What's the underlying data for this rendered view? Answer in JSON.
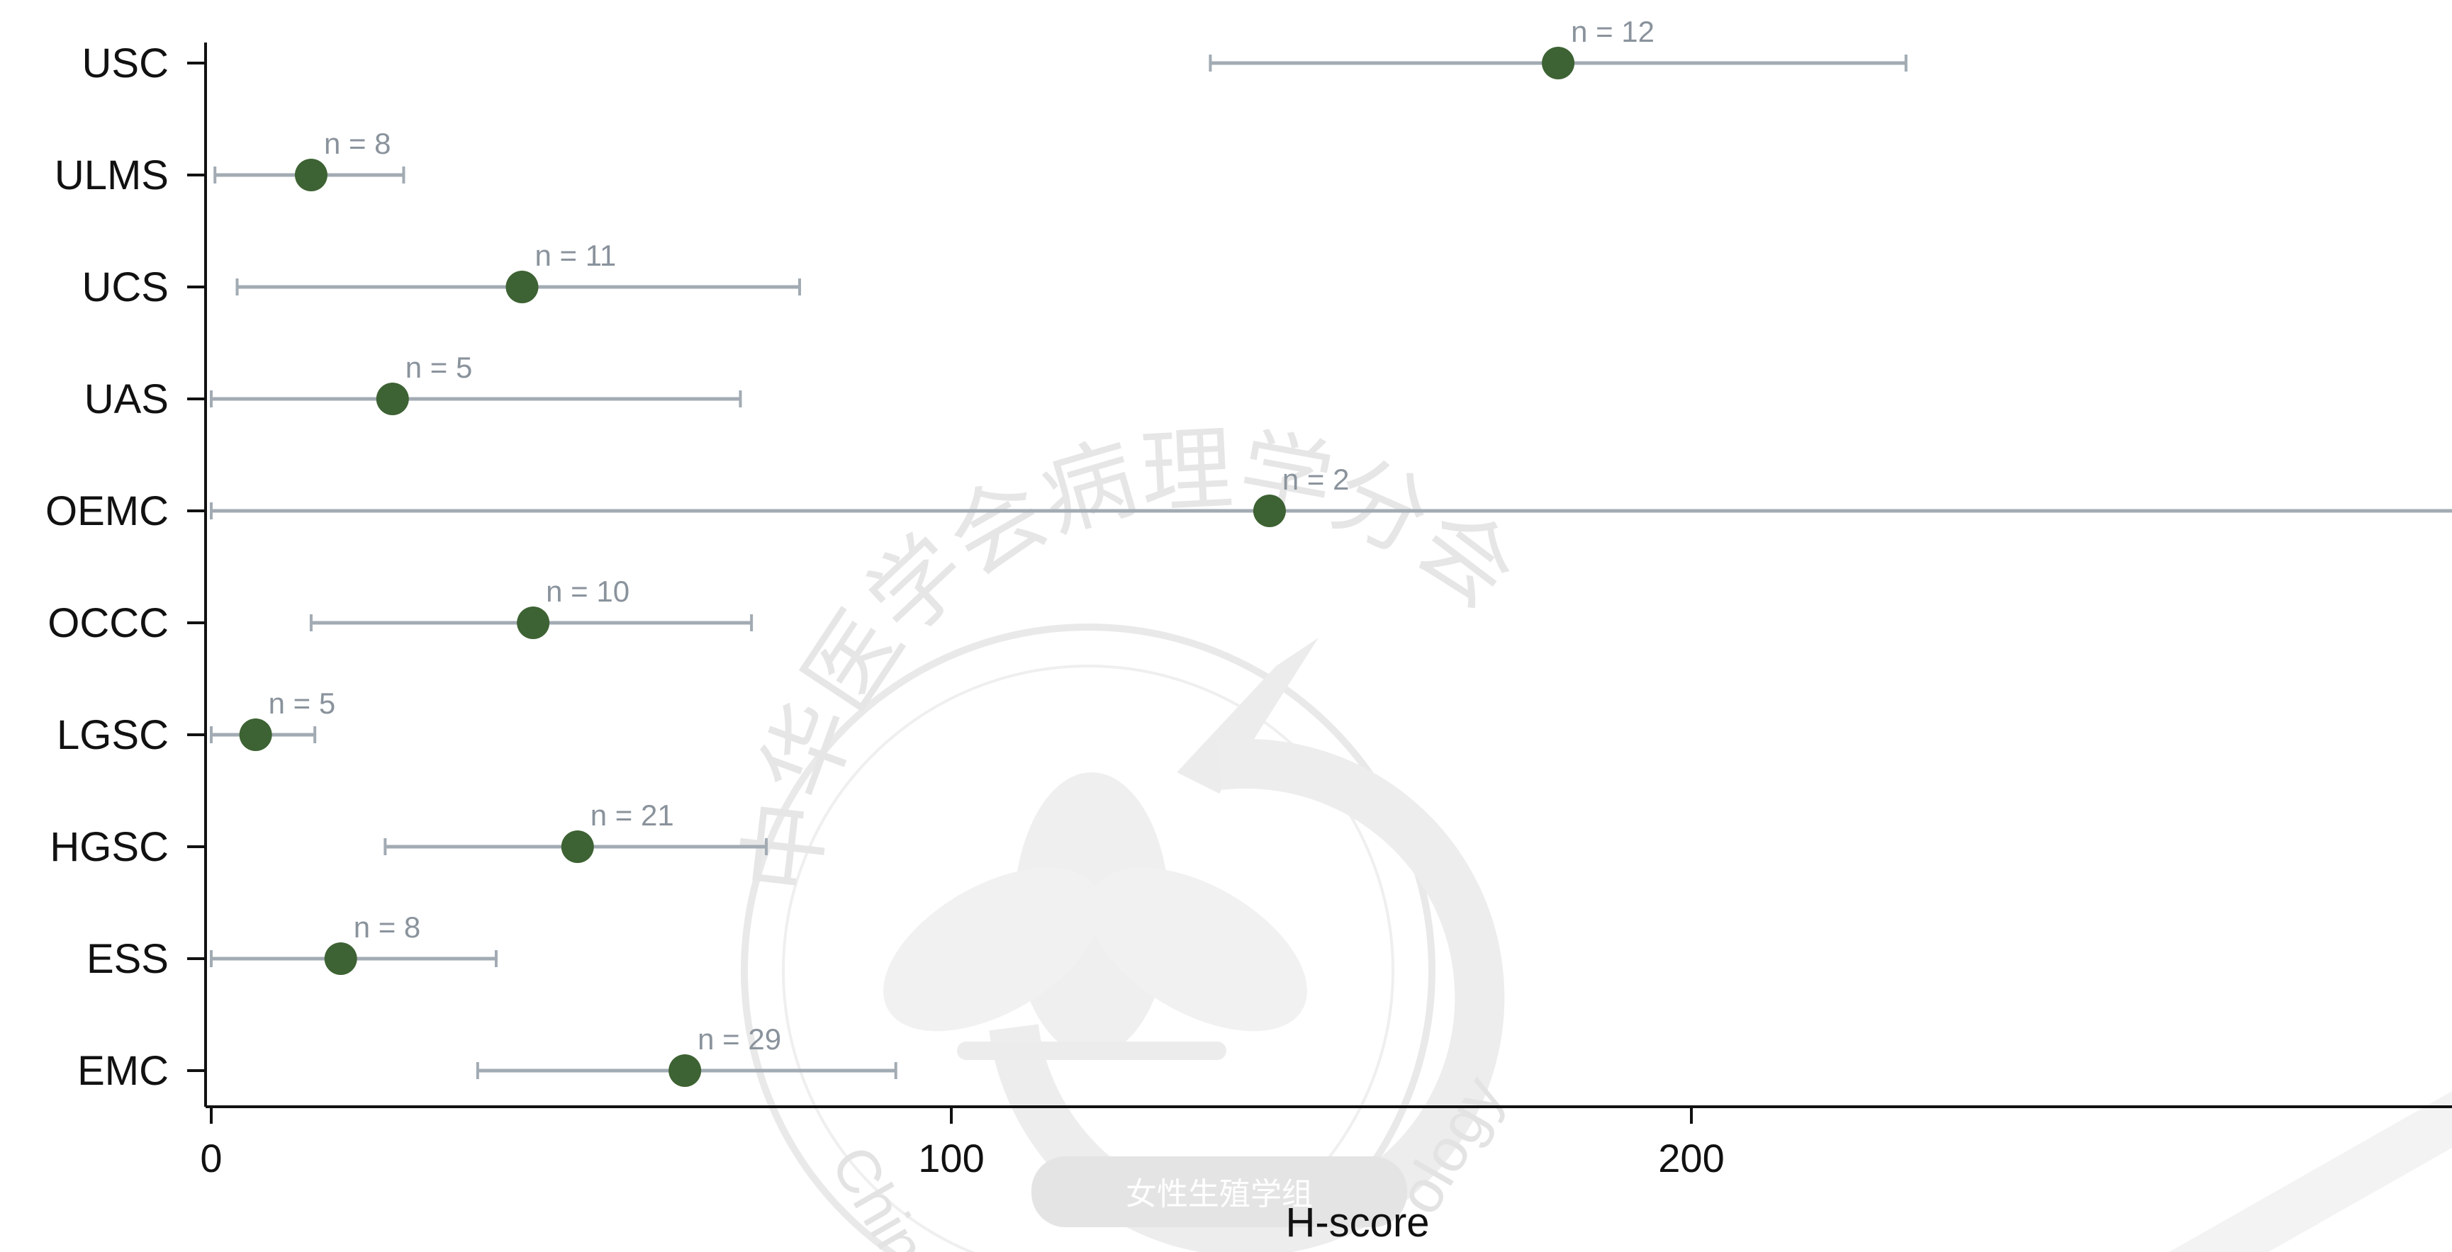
{
  "chart_data": {
    "type": "scatter",
    "title": "",
    "xlabel": "H-score",
    "ylabel": "",
    "xlim": [
      0,
      305
    ],
    "xticks": [
      0,
      100,
      200
    ],
    "tick_labels": [
      "0",
      "100",
      "200"
    ],
    "grid": false,
    "legend": "none",
    "point_color": "#3d6233",
    "errorbar_color": "#a2abb3",
    "series": [
      {
        "categories": [
          "USC",
          "ULMS",
          "UCS",
          "UAS",
          "OEMC",
          "OCCC",
          "LGSC",
          "HGSC",
          "ESS",
          "EMC"
        ],
        "mean": [
          182,
          13.5,
          42,
          24.5,
          143,
          43.5,
          6,
          49.5,
          17.5,
          64
        ],
        "lower": [
          135,
          0.5,
          3.5,
          0,
          0,
          13.5,
          0,
          23.5,
          0,
          36
        ],
        "upper": [
          229,
          26,
          79.5,
          71.5,
          305,
          73,
          14,
          75,
          38.5,
          92.5
        ],
        "n_labels": [
          "n = 12",
          "n = 8",
          "n = 11",
          "n = 5",
          "n = 2",
          "n = 10",
          "n = 5",
          "n = 21",
          "n = 8",
          "n = 29"
        ]
      }
    ]
  },
  "watermark": {
    "ring_text": "中华医学会病理学分会",
    "latin_left": "Chine",
    "latin_right": "ology",
    "badge_text": "女性生殖学组"
  }
}
